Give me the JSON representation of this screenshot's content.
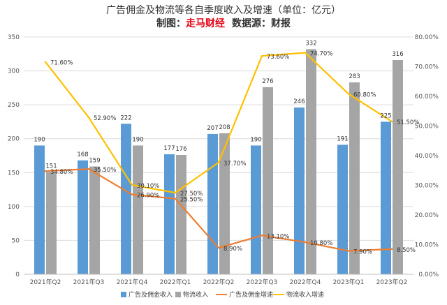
{
  "chart_data": {
    "type": "bar",
    "title": "广告佣金及物流等各自季度收入及增速（单位：亿元）",
    "subtitle": {
      "prefix": "制图：",
      "brand": "走马财经",
      "source": "数据源：财报"
    },
    "categories": [
      "2021年Q2",
      "2021年Q3",
      "2021年Q4",
      "2022年Q1",
      "2022年Q2",
      "2022年Q3",
      "2022年Q4",
      "2023年Q1",
      "2023年Q2"
    ],
    "series": [
      {
        "name": "广告及佣金收入",
        "kind": "bar",
        "axis": "left",
        "color": "#5b9bd5",
        "values": [
          190,
          168,
          222,
          177,
          207,
          190,
          246,
          191,
          225
        ],
        "labels": [
          "190",
          "168",
          "222",
          "177",
          "207",
          "190",
          "246",
          "191",
          "225"
        ]
      },
      {
        "name": "物流收入",
        "kind": "bar",
        "axis": "left",
        "color": "#a5a5a5",
        "values": [
          151,
          159,
          190,
          176,
          208,
          276,
          332,
          283,
          316
        ],
        "labels": [
          "151",
          "159",
          "190",
          "176",
          "208",
          "276",
          "332",
          "283",
          "316"
        ]
      },
      {
        "name": "广告及佣金增速",
        "kind": "line",
        "axis": "right",
        "color": "#ed7d31",
        "values": [
          34.8,
          35.5,
          26.9,
          25.5,
          8.9,
          13.1,
          10.8,
          7.9,
          8.5
        ],
        "labels": [
          "34.80%",
          "35.50%",
          "26.90%",
          "25.50%",
          "8.90%",
          "13.10%",
          "10.80%",
          "7.90%",
          "8.50%"
        ]
      },
      {
        "name": "物流收入增速",
        "kind": "line",
        "axis": "right",
        "color": "#ffc000",
        "values": [
          71.6,
          52.9,
          30.1,
          27.5,
          37.7,
          73.6,
          74.7,
          60.8,
          51.5
        ],
        "labels": [
          "71.60%",
          "52.90%",
          "30.10%",
          "27.50%",
          "37.70%",
          "73.60%",
          "74.70%",
          "60.80%",
          "51.50%"
        ]
      }
    ],
    "y_left": {
      "min": 0,
      "max": 350,
      "ticks": [
        "0",
        "50",
        "100",
        "150",
        "200",
        "250",
        "300",
        "350"
      ]
    },
    "y_right": {
      "min": 0,
      "max": 80,
      "ticks": [
        "0.00%",
        "10.00%",
        "20.00%",
        "30.00%",
        "40.00%",
        "50.00%",
        "60.00%",
        "70.00%",
        "80.00%"
      ]
    },
    "grid": true,
    "legend": "bottom"
  }
}
